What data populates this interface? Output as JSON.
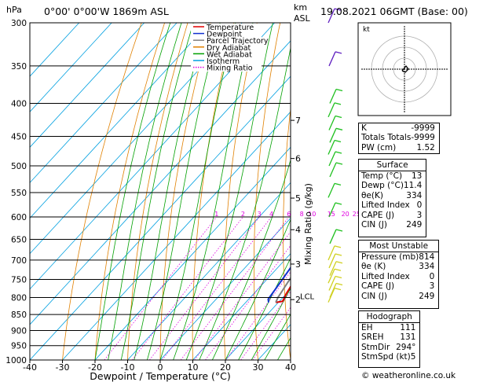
{
  "header": {
    "hpa_label": "hPa",
    "location": "0°00'  0°00'W  1869m  ASL",
    "km_label": "km",
    "asl_label": "ASL",
    "datetime": "19.08.2021  06GMT  (Base: 00)"
  },
  "legend": {
    "items": [
      {
        "label": "Temperature",
        "color": "#e00000"
      },
      {
        "label": "Dewpoint",
        "color": "#1030d0"
      },
      {
        "label": "Parcel Trajectory",
        "color": "#808080"
      },
      {
        "label": "Dry Adiabat",
        "color": "#e08000"
      },
      {
        "label": "Wet Adiabat",
        "color": "#00a000"
      },
      {
        "label": "Isotherm",
        "color": "#00a0e0"
      },
      {
        "label": "Mixing Ratio",
        "color": "#e000e0"
      }
    ]
  },
  "chart_data": {
    "type": "line",
    "title": "",
    "xlabel": "Dewpoint / Temperature (°C)",
    "ylabel": "hPa",
    "xlim": [
      -40,
      40
    ],
    "ylim": [
      1000,
      300
    ],
    "y_log_scale": true,
    "x_ticks": [
      -40,
      -30,
      -20,
      -10,
      0,
      10,
      20,
      30,
      40
    ],
    "y_ticks": [
      300,
      350,
      400,
      450,
      500,
      550,
      600,
      650,
      700,
      750,
      800,
      850,
      900,
      950,
      1000
    ],
    "km_ticks": [
      {
        "label": "7",
        "p": 425
      },
      {
        "label": "6",
        "p": 487
      },
      {
        "label": "5",
        "p": 561
      },
      {
        "label": "4",
        "p": 628
      },
      {
        "label": "3",
        "p": 710
      },
      {
        "label": "2",
        "p": 806
      }
    ],
    "lcl": {
      "label": "LCL",
      "p": 800
    },
    "right_axis_label": "Mixing Ratio (g/kg)",
    "mixing_ratio_labels": [
      "1",
      "2",
      "3",
      "4",
      "6",
      "8",
      "10",
      "15",
      "20",
      "25"
    ],
    "series": [
      {
        "name": "Temperature",
        "color": "#e00000",
        "points": [
          [
            19.2,
            814
          ],
          [
            21,
            811
          ],
          [
            20,
            790
          ],
          [
            19,
            760
          ],
          [
            21.5,
            700
          ],
          [
            20.5,
            680
          ],
          [
            19,
            660
          ],
          [
            17,
            630
          ],
          [
            15,
            600
          ],
          [
            14,
            578
          ],
          [
            15.5,
            560
          ],
          [
            14.5,
            545
          ],
          [
            11,
            500
          ],
          [
            7,
            450
          ],
          [
            3,
            400
          ],
          [
            0.5,
            350
          ],
          [
            -3.5,
            300
          ]
        ]
      },
      {
        "name": "Dewpoint",
        "color": "#1030d0",
        "points": [
          [
            17,
            814
          ],
          [
            16,
            805
          ],
          [
            15,
            760
          ],
          [
            14,
            720
          ],
          [
            13.5,
            700
          ],
          [
            12.5,
            690
          ],
          [
            10,
            680
          ],
          [
            9,
            640
          ],
          [
            8,
            600
          ],
          [
            6.5,
            575
          ],
          [
            5,
            565
          ],
          [
            -3,
            555
          ],
          [
            -7,
            540
          ],
          [
            -5,
            520
          ],
          [
            -3,
            505
          ],
          [
            -8,
            470
          ],
          [
            -12,
            440
          ],
          [
            -19,
            400
          ],
          [
            -21,
            350
          ],
          [
            -23,
            300
          ]
        ]
      },
      {
        "name": "Parcel Trajectory",
        "color": "#808080",
        "points": [
          [
            19.2,
            814
          ],
          [
            18.5,
            800
          ],
          [
            17,
            750
          ],
          [
            15.8,
            700
          ],
          [
            14.2,
            650
          ],
          [
            13.2,
            600
          ],
          [
            12,
            550
          ],
          [
            10,
            500
          ],
          [
            6,
            450
          ],
          [
            1.5,
            400
          ],
          [
            -4,
            350
          ],
          [
            -10,
            300
          ]
        ]
      }
    ]
  },
  "hodograph": {
    "label": "kt"
  },
  "indices": {
    "general": [
      {
        "label": "K",
        "value": "-9999"
      },
      {
        "label": "Totals Totals",
        "value": "-9999"
      },
      {
        "label": "PW (cm)",
        "value": "1.52"
      }
    ],
    "surface": {
      "title": "Surface",
      "rows": [
        {
          "label": "Temp (°C)",
          "value": "13"
        },
        {
          "label": "Dewp (°C)",
          "value": "11.4"
        },
        {
          "label": "θe(K)",
          "value": "334"
        },
        {
          "label": "Lifted Index",
          "value": "0"
        },
        {
          "label": "CAPE (J)",
          "value": "3"
        },
        {
          "label": "CIN (J)",
          "value": "249"
        }
      ]
    },
    "most_unstable": {
      "title": "Most Unstable",
      "rows": [
        {
          "label": "Pressure (mb)",
          "value": "814"
        },
        {
          "label": "θe (K)",
          "value": "334"
        },
        {
          "label": "Lifted Index",
          "value": "0"
        },
        {
          "label": "CAPE (J)",
          "value": "3"
        },
        {
          "label": "CIN (J)",
          "value": "249"
        }
      ]
    },
    "hodograph": {
      "title": "Hodograph",
      "rows": [
        {
          "label": "EH",
          "value": "111"
        },
        {
          "label": "SREH",
          "value": "131"
        },
        {
          "label": "StmDir",
          "value": "294°"
        },
        {
          "label": "StmSpd (kt)",
          "value": "5"
        }
      ]
    }
  },
  "footer": {
    "copyright": "© weatheronline.co.uk"
  }
}
